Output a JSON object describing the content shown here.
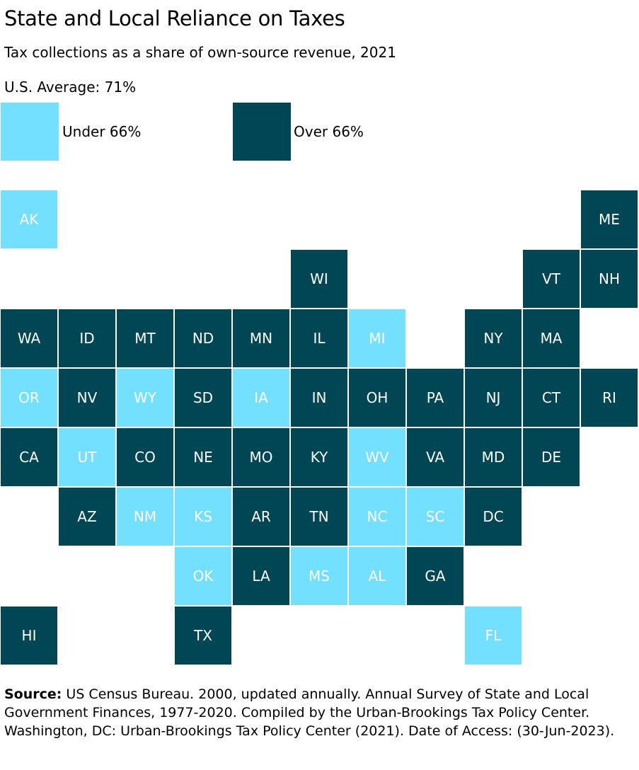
{
  "title": "State and Local Reliance on Taxes",
  "subtitle": "Tax collections as a share of own-source revenue, 2021",
  "average": "U.S. Average: 71%",
  "colors": {
    "under": "#73E0FF",
    "over": "#004655"
  },
  "legend": [
    {
      "key": "under",
      "label": "Under 66%"
    },
    {
      "key": "over",
      "label": "Over 66%"
    }
  ],
  "map": {
    "type": "tile-grid",
    "tiles": [
      {
        "state": "AK",
        "row": 0,
        "col": 0,
        "category": "under"
      },
      {
        "state": "ME",
        "row": 0,
        "col": 10,
        "category": "over"
      },
      {
        "state": "WI",
        "row": 1,
        "col": 5,
        "category": "over"
      },
      {
        "state": "VT",
        "row": 1,
        "col": 9,
        "category": "over"
      },
      {
        "state": "NH",
        "row": 1,
        "col": 10,
        "category": "over"
      },
      {
        "state": "WA",
        "row": 2,
        "col": 0,
        "category": "over"
      },
      {
        "state": "ID",
        "row": 2,
        "col": 1,
        "category": "over"
      },
      {
        "state": "MT",
        "row": 2,
        "col": 2,
        "category": "over"
      },
      {
        "state": "ND",
        "row": 2,
        "col": 3,
        "category": "over"
      },
      {
        "state": "MN",
        "row": 2,
        "col": 4,
        "category": "over"
      },
      {
        "state": "IL",
        "row": 2,
        "col": 5,
        "category": "over"
      },
      {
        "state": "MI",
        "row": 2,
        "col": 6,
        "category": "under"
      },
      {
        "state": "NY",
        "row": 2,
        "col": 8,
        "category": "over"
      },
      {
        "state": "MA",
        "row": 2,
        "col": 9,
        "category": "over"
      },
      {
        "state": "OR",
        "row": 3,
        "col": 0,
        "category": "under"
      },
      {
        "state": "NV",
        "row": 3,
        "col": 1,
        "category": "over"
      },
      {
        "state": "WY",
        "row": 3,
        "col": 2,
        "category": "under"
      },
      {
        "state": "SD",
        "row": 3,
        "col": 3,
        "category": "over"
      },
      {
        "state": "IA",
        "row": 3,
        "col": 4,
        "category": "under"
      },
      {
        "state": "IN",
        "row": 3,
        "col": 5,
        "category": "over"
      },
      {
        "state": "OH",
        "row": 3,
        "col": 6,
        "category": "over"
      },
      {
        "state": "PA",
        "row": 3,
        "col": 7,
        "category": "over"
      },
      {
        "state": "NJ",
        "row": 3,
        "col": 8,
        "category": "over"
      },
      {
        "state": "CT",
        "row": 3,
        "col": 9,
        "category": "over"
      },
      {
        "state": "RI",
        "row": 3,
        "col": 10,
        "category": "over"
      },
      {
        "state": "CA",
        "row": 4,
        "col": 0,
        "category": "over"
      },
      {
        "state": "UT",
        "row": 4,
        "col": 1,
        "category": "under"
      },
      {
        "state": "CO",
        "row": 4,
        "col": 2,
        "category": "over"
      },
      {
        "state": "NE",
        "row": 4,
        "col": 3,
        "category": "over"
      },
      {
        "state": "MO",
        "row": 4,
        "col": 4,
        "category": "over"
      },
      {
        "state": "KY",
        "row": 4,
        "col": 5,
        "category": "over"
      },
      {
        "state": "WV",
        "row": 4,
        "col": 6,
        "category": "under"
      },
      {
        "state": "VA",
        "row": 4,
        "col": 7,
        "category": "over"
      },
      {
        "state": "MD",
        "row": 4,
        "col": 8,
        "category": "over"
      },
      {
        "state": "DE",
        "row": 4,
        "col": 9,
        "category": "over"
      },
      {
        "state": "AZ",
        "row": 5,
        "col": 1,
        "category": "over"
      },
      {
        "state": "NM",
        "row": 5,
        "col": 2,
        "category": "under"
      },
      {
        "state": "KS",
        "row": 5,
        "col": 3,
        "category": "under"
      },
      {
        "state": "AR",
        "row": 5,
        "col": 4,
        "category": "over"
      },
      {
        "state": "TN",
        "row": 5,
        "col": 5,
        "category": "over"
      },
      {
        "state": "NC",
        "row": 5,
        "col": 6,
        "category": "under"
      },
      {
        "state": "SC",
        "row": 5,
        "col": 7,
        "category": "under"
      },
      {
        "state": "DC",
        "row": 5,
        "col": 8,
        "category": "over"
      },
      {
        "state": "OK",
        "row": 6,
        "col": 3,
        "category": "under"
      },
      {
        "state": "LA",
        "row": 6,
        "col": 4,
        "category": "over"
      },
      {
        "state": "MS",
        "row": 6,
        "col": 5,
        "category": "under"
      },
      {
        "state": "AL",
        "row": 6,
        "col": 6,
        "category": "under"
      },
      {
        "state": "GA",
        "row": 6,
        "col": 7,
        "category": "over"
      },
      {
        "state": "HI",
        "row": 7,
        "col": 0,
        "category": "over"
      },
      {
        "state": "TX",
        "row": 7,
        "col": 3,
        "category": "over"
      },
      {
        "state": "FL",
        "row": 7,
        "col": 8,
        "category": "under"
      }
    ]
  },
  "source": {
    "label": "Source:",
    "text": " US Census Bureau. 2000, updated annually. Annual Survey of State and Local Government Finances, 1977-2020. Compiled by the Urban-Brookings Tax Policy Center. Washington, DC: Urban-Brookings Tax Policy Center (2021). Date of Access: (30-Jun-2023)."
  }
}
